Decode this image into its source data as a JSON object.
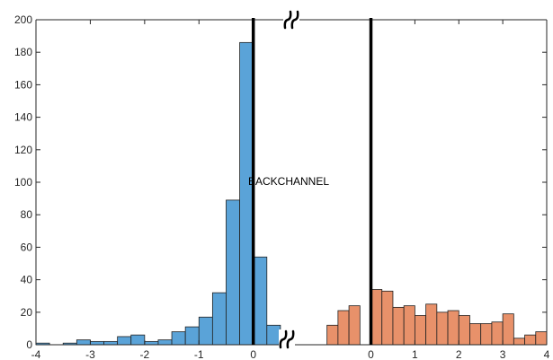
{
  "chart_data": {
    "type": "bar",
    "title": "",
    "xlabel": "",
    "ylabel": "",
    "ylim": [
      0,
      200
    ],
    "y_ticks": [
      "0",
      "20",
      "40",
      "60",
      "80",
      "100",
      "120",
      "140",
      "160",
      "180",
      "200"
    ],
    "grid": false,
    "legend": "none",
    "annotation": "BACKCHANNEL",
    "panels": [
      {
        "name": "",
        "color": "#5aa3d8",
        "xlim": [
          -4,
          0.75
        ],
        "x_ticks": [
          "-4",
          "-3",
          "-2",
          "-1",
          "0"
        ],
        "bin_width": 0.25,
        "bin_starts": [
          -4.0,
          -3.75,
          -3.5,
          -3.25,
          -3.0,
          -2.75,
          -2.5,
          -2.25,
          -2.0,
          -1.75,
          -1.5,
          -1.25,
          -1.0,
          -0.75,
          -0.5,
          -0.25,
          0.0,
          0.25,
          0.5
        ],
        "values": [
          1,
          0,
          1,
          3,
          2,
          2,
          5,
          6,
          2,
          3,
          8,
          11,
          17,
          32,
          89,
          186,
          54,
          12,
          2
        ],
        "divider_at": 0
      },
      {
        "name": "",
        "color": "#e8916a",
        "xlim": [
          -1.75,
          4
        ],
        "x_ticks": [
          "0",
          "1",
          "2",
          "3",
          "4"
        ],
        "bin_width": 0.25,
        "bin_starts": [
          -1.0,
          -0.75,
          -0.5,
          -0.25,
          0.0,
          0.25,
          0.5,
          0.75,
          1.0,
          1.25,
          1.5,
          1.75,
          2.0,
          2.25,
          2.5,
          2.75,
          3.0,
          3.25,
          3.5,
          3.75
        ],
        "values": [
          12,
          21,
          24,
          0,
          34,
          33,
          23,
          24,
          18,
          25,
          20,
          21,
          18,
          13,
          13,
          14,
          19,
          4,
          6,
          8
        ],
        "divider_at": 0
      }
    ]
  }
}
